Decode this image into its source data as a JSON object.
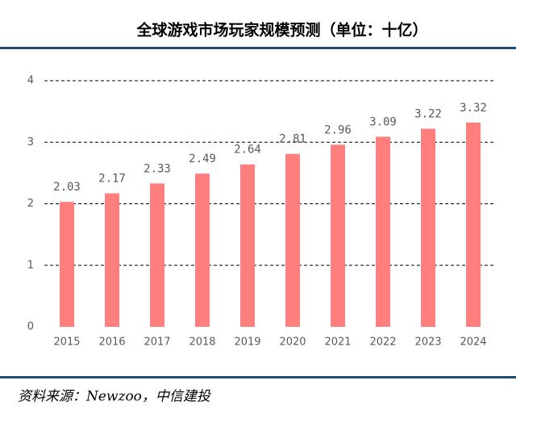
{
  "chart_data": {
    "type": "bar",
    "title": "全球游戏市场玩家规模预测（单位：十亿）",
    "categories": [
      "2015",
      "2016",
      "2017",
      "2018",
      "2019",
      "2020",
      "2021",
      "2022",
      "2023",
      "2024"
    ],
    "values": [
      2.03,
      2.17,
      2.33,
      2.49,
      2.64,
      2.81,
      2.96,
      3.09,
      3.22,
      3.32
    ],
    "color": "#ff7f7f",
    "ylim": [
      0,
      4
    ],
    "yticks": [
      0,
      1,
      2,
      3,
      4
    ],
    "grid": true,
    "source": "资料来源：Newzoo，中信建投"
  }
}
